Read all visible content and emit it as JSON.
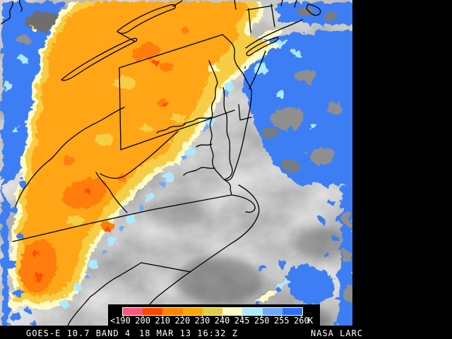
{
  "status_bar": {
    "left": "GOES-E 10.7 BAND 4",
    "center": "18 MAR 13 16:32 Z",
    "right": "NASA LARC"
  },
  "colorbar": {
    "less_than": "<",
    "unit": "K",
    "boundary_labels": [
      "190",
      "200",
      "210",
      "220",
      "230",
      "240",
      "245",
      "250",
      "255",
      "260"
    ],
    "segments": [
      {
        "range": "<190-200",
        "color": "#F8587B"
      },
      {
        "range": "200-210",
        "color": "#FC4700"
      },
      {
        "range": "210-220",
        "color": "#FF8500"
      },
      {
        "range": "220-230",
        "color": "#FFA505"
      },
      {
        "range": "230-240",
        "color": "#E2CC49"
      },
      {
        "range": "240-245",
        "color": "#FEFBC2"
      },
      {
        "range": "245-250",
        "color": "#ABE9FE"
      },
      {
        "range": "250-255",
        "color": "#6FA9FB"
      },
      {
        "range": "255-260",
        "color": "#2E70F5"
      }
    ]
  },
  "map": {
    "colors": {
      "background_gray": "#7b7b7b",
      "cloud_blue": "#3d7ef5",
      "cloud_light_blue": "#6fa9fb",
      "cloud_cyan": "#abe9fe",
      "cloud_cream": "#fffac6",
      "cloud_yellow": "#f6cd45",
      "cloud_amber": "#ffa512",
      "cloud_deep_orange": "#ff7d07",
      "cloud_red_orange": "#fc4f00",
      "boundary_line": "#000000"
    }
  }
}
